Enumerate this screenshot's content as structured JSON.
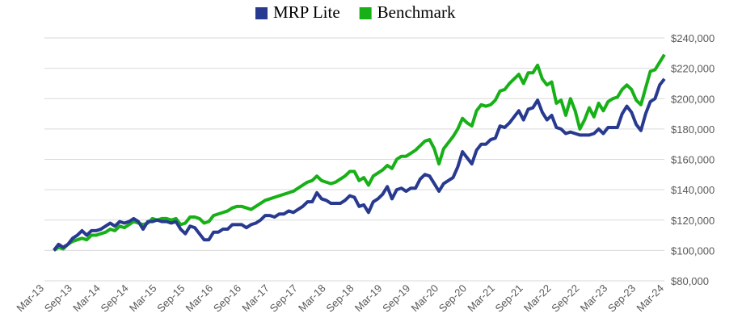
{
  "chart_data": {
    "type": "line",
    "categories": [
      "Mar-13",
      null,
      null,
      null,
      null,
      null,
      "Sep-13",
      null,
      null,
      null,
      null,
      null,
      "Mar-14",
      null,
      null,
      null,
      null,
      null,
      "Sep-14",
      null,
      null,
      null,
      null,
      null,
      "Mar-15",
      null,
      null,
      null,
      null,
      null,
      "Sep-15",
      null,
      null,
      null,
      null,
      null,
      "Mar-16",
      null,
      null,
      null,
      null,
      null,
      "Sep-16",
      null,
      null,
      null,
      null,
      null,
      "Mar-17",
      null,
      null,
      null,
      null,
      null,
      "Sep-17",
      null,
      null,
      null,
      null,
      null,
      "Mar-18",
      null,
      null,
      null,
      null,
      null,
      "Sep-18",
      null,
      null,
      null,
      null,
      null,
      "Mar-19",
      null,
      null,
      null,
      null,
      null,
      "Sep-19",
      null,
      null,
      null,
      null,
      null,
      "Mar-20",
      null,
      null,
      null,
      null,
      null,
      "Sep-20",
      null,
      null,
      null,
      null,
      null,
      "Mar-21",
      null,
      null,
      null,
      null,
      null,
      "Sep-21",
      null,
      null,
      null,
      null,
      null,
      "Mar-22",
      null,
      null,
      null,
      null,
      null,
      "Sep-22",
      null,
      null,
      null,
      null,
      null,
      "Mar-23",
      null,
      null,
      null,
      null,
      null,
      "Sep-23",
      null,
      null,
      null,
      null,
      null,
      "Mar-24"
    ],
    "series": [
      {
        "name": "MRP Lite",
        "color": "#283a8f",
        "values": [
          null,
          null,
          100000,
          104000,
          102000,
          104000,
          108000,
          110000,
          113000,
          110000,
          113000,
          113000,
          114000,
          116000,
          118000,
          116000,
          119000,
          118000,
          119000,
          121000,
          119000,
          114000,
          119000,
          119000,
          120000,
          119000,
          119000,
          118000,
          119000,
          114000,
          111000,
          116000,
          115000,
          111000,
          107000,
          107000,
          112000,
          112000,
          114000,
          114000,
          117000,
          117000,
          117000,
          115000,
          117000,
          118000,
          120000,
          123000,
          123000,
          122000,
          124000,
          124000,
          126000,
          125000,
          127000,
          129000,
          132000,
          132000,
          138000,
          134000,
          133000,
          131000,
          131000,
          131000,
          133000,
          136000,
          135000,
          129000,
          130000,
          125000,
          132000,
          134000,
          137000,
          142000,
          134000,
          140000,
          141000,
          139000,
          141000,
          141000,
          147000,
          150000,
          149000,
          144000,
          139000,
          144000,
          146000,
          148000,
          155000,
          165000,
          161000,
          157000,
          166000,
          170000,
          170000,
          173000,
          174000,
          182000,
          181000,
          184000,
          188000,
          192000,
          186000,
          193000,
          194000,
          199000,
          191000,
          186000,
          189000,
          181000,
          180000,
          177000,
          178000,
          177000,
          176000,
          176000,
          176000,
          177000,
          180000,
          177000,
          181000,
          181000,
          181000,
          190000,
          195000,
          191000,
          183000,
          179000,
          190000,
          198000,
          200000,
          209000,
          213000
        ]
      },
      {
        "name": "Benchmark",
        "color": "#17b017",
        "values": [
          null,
          null,
          100000,
          102000,
          101000,
          104000,
          106000,
          107000,
          108000,
          107000,
          110000,
          110000,
          111000,
          112000,
          114000,
          113000,
          116000,
          115000,
          117000,
          119000,
          118000,
          117000,
          118000,
          121000,
          120000,
          121000,
          121000,
          120000,
          121000,
          117000,
          118000,
          122000,
          122000,
          121000,
          118000,
          119000,
          123000,
          124000,
          125000,
          126000,
          128000,
          129000,
          129000,
          128000,
          127000,
          129000,
          131000,
          133000,
          134000,
          135000,
          136000,
          137000,
          138000,
          139000,
          141000,
          143000,
          145000,
          146000,
          149000,
          146000,
          145000,
          144000,
          145000,
          147000,
          149000,
          152000,
          152000,
          146000,
          148000,
          143000,
          149000,
          151000,
          153000,
          156000,
          154000,
          160000,
          162000,
          162000,
          164000,
          166000,
          169000,
          172000,
          173000,
          167000,
          157000,
          167000,
          171000,
          175000,
          180000,
          187000,
          184000,
          182000,
          192000,
          196000,
          195000,
          196000,
          199000,
          205000,
          206000,
          210000,
          213000,
          216000,
          210000,
          217000,
          217000,
          222000,
          213000,
          209000,
          211000,
          197000,
          199000,
          189000,
          200000,
          192000,
          180000,
          186000,
          194000,
          188000,
          197000,
          192000,
          198000,
          200000,
          201000,
          206000,
          209000,
          206000,
          199000,
          196000,
          207000,
          218000,
          219000,
          224000,
          229000
        ]
      }
    ],
    "ylim": [
      80000,
      240000
    ],
    "yticks": [
      {
        "value": 80000,
        "label": "$80,000"
      },
      {
        "value": 100000,
        "label": "$100,000"
      },
      {
        "value": 120000,
        "label": "$120,000"
      },
      {
        "value": 140000,
        "label": "$140,000"
      },
      {
        "value": 160000,
        "label": "$160,000"
      },
      {
        "value": 180000,
        "label": "$180,000"
      },
      {
        "value": 200000,
        "label": "$200,000"
      },
      {
        "value": 220000,
        "label": "$220,000"
      },
      {
        "value": 240000,
        "label": "$240,000"
      }
    ],
    "grid": true
  }
}
